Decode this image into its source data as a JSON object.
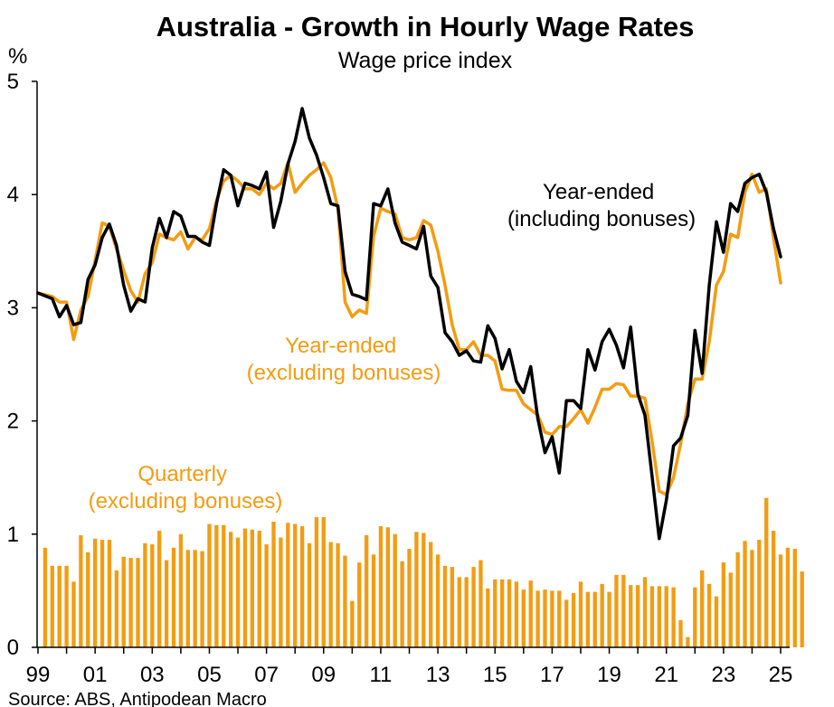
{
  "chart_data": {
    "type": "bar+line",
    "title": "Australia - Growth in Hourly Wage Rates",
    "subtitle": "Wage price index",
    "ylabel": "%",
    "ylim": [
      0,
      5
    ],
    "yticks": [
      "0",
      "1",
      "2",
      "3",
      "4",
      "5"
    ],
    "xlim": [
      1999.0,
      2025.5
    ],
    "xticks": [
      {
        "label": "99",
        "x": 1999.0
      },
      {
        "label": "01",
        "x": 2001.0
      },
      {
        "label": "03",
        "x": 2003.0
      },
      {
        "label": "05",
        "x": 2005.0
      },
      {
        "label": "07",
        "x": 2007.0
      },
      {
        "label": "09",
        "x": 2009.0
      },
      {
        "label": "11",
        "x": 2011.0
      },
      {
        "label": "13",
        "x": 2013.0
      },
      {
        "label": "15",
        "x": 2015.0
      },
      {
        "label": "17",
        "x": 2017.0
      },
      {
        "label": "19",
        "x": 2019.0
      },
      {
        "label": "21",
        "x": 2021.0
      },
      {
        "label": "23",
        "x": 2023.0
      },
      {
        "label": "25",
        "x": 2025.0
      }
    ],
    "grid": false,
    "series": [
      {
        "name": "Quarterly (excluding bonuses)",
        "kind": "bar",
        "color": "#F39C12",
        "x_start": 1999.25,
        "x_step": 0.25,
        "values": [
          0.88,
          0.72,
          0.72,
          0.72,
          0.58,
          0.99,
          0.84,
          0.96,
          0.95,
          0.95,
          0.68,
          0.8,
          0.79,
          0.79,
          0.92,
          0.91,
          1.03,
          0.77,
          0.88,
          1.0,
          0.86,
          0.86,
          0.85,
          1.09,
          1.08,
          1.08,
          1.02,
          0.97,
          1.05,
          1.04,
          1.03,
          0.91,
          1.11,
          0.97,
          1.1,
          1.09,
          1.07,
          0.92,
          1.15,
          1.15,
          0.93,
          0.92,
          0.81,
          0.41,
          0.75,
          0.99,
          0.82,
          1.07,
          1.06,
          1.0,
          0.76,
          0.87,
          1.02,
          1.01,
          0.93,
          0.82,
          0.72,
          0.71,
          0.62,
          0.62,
          0.71,
          0.77,
          0.52,
          0.6,
          0.6,
          0.6,
          0.58,
          0.51,
          0.59,
          0.5,
          0.51,
          0.5,
          0.5,
          0.42,
          0.48,
          0.58,
          0.49,
          0.49,
          0.56,
          0.49,
          0.64,
          0.64,
          0.55,
          0.55,
          0.62,
          0.54,
          0.54,
          0.54,
          0.53,
          0.24,
          0.09,
          0.53,
          0.68,
          0.56,
          0.45,
          0.75,
          0.66,
          0.84,
          0.94,
          0.86,
          0.95,
          1.32,
          1.03,
          0.82,
          0.88,
          0.87,
          0.67
        ]
      },
      {
        "name": "Year-ended (including bonuses)",
        "label": "Year-ended\n(including bonuses)",
        "kind": "line",
        "color": "#000000",
        "points": [
          [
            1999.0,
            3.13
          ],
          [
            1999.5,
            3.08
          ],
          [
            1999.75,
            2.92
          ],
          [
            2000.0,
            3.02
          ],
          [
            2000.25,
            2.85
          ],
          [
            2000.5,
            2.87
          ],
          [
            2000.75,
            3.25
          ],
          [
            2001.0,
            3.38
          ],
          [
            2001.25,
            3.62
          ],
          [
            2001.5,
            3.74
          ],
          [
            2001.75,
            3.55
          ],
          [
            2002.0,
            3.2
          ],
          [
            2002.25,
            2.97
          ],
          [
            2002.5,
            3.08
          ],
          [
            2002.75,
            3.05
          ],
          [
            2003.0,
            3.53
          ],
          [
            2003.25,
            3.79
          ],
          [
            2003.5,
            3.62
          ],
          [
            2003.75,
            3.85
          ],
          [
            2004.0,
            3.81
          ],
          [
            2004.25,
            3.63
          ],
          [
            2004.5,
            3.63
          ],
          [
            2004.75,
            3.58
          ],
          [
            2005.0,
            3.55
          ],
          [
            2005.25,
            3.92
          ],
          [
            2005.5,
            4.22
          ],
          [
            2005.75,
            4.17
          ],
          [
            2006.0,
            3.9
          ],
          [
            2006.25,
            4.1
          ],
          [
            2006.5,
            4.08
          ],
          [
            2006.75,
            4.05
          ],
          [
            2007.0,
            4.2
          ],
          [
            2007.25,
            3.71
          ],
          [
            2007.5,
            3.94
          ],
          [
            2007.75,
            4.27
          ],
          [
            2008.0,
            4.47
          ],
          [
            2008.25,
            4.76
          ],
          [
            2008.5,
            4.5
          ],
          [
            2008.75,
            4.35
          ],
          [
            2009.0,
            4.15
          ],
          [
            2009.25,
            3.92
          ],
          [
            2009.5,
            3.9
          ],
          [
            2009.75,
            3.32
          ],
          [
            2010.0,
            3.12
          ],
          [
            2010.25,
            3.1
          ],
          [
            2010.5,
            3.07
          ],
          [
            2010.75,
            3.92
          ],
          [
            2011.0,
            3.9
          ],
          [
            2011.25,
            4.05
          ],
          [
            2011.5,
            3.75
          ],
          [
            2011.75,
            3.58
          ],
          [
            2012.0,
            3.55
          ],
          [
            2012.25,
            3.52
          ],
          [
            2012.5,
            3.72
          ],
          [
            2012.75,
            3.28
          ],
          [
            2013.0,
            3.18
          ],
          [
            2013.25,
            2.78
          ],
          [
            2013.5,
            2.7
          ],
          [
            2013.75,
            2.58
          ],
          [
            2014.0,
            2.62
          ],
          [
            2014.25,
            2.53
          ],
          [
            2014.5,
            2.52
          ],
          [
            2014.75,
            2.84
          ],
          [
            2015.0,
            2.73
          ],
          [
            2015.25,
            2.46
          ],
          [
            2015.5,
            2.63
          ],
          [
            2015.75,
            2.35
          ],
          [
            2016.0,
            2.25
          ],
          [
            2016.25,
            2.48
          ],
          [
            2016.5,
            2.02
          ],
          [
            2016.75,
            1.72
          ],
          [
            2017.0,
            1.86
          ],
          [
            2017.25,
            1.54
          ],
          [
            2017.5,
            2.18
          ],
          [
            2017.75,
            2.18
          ],
          [
            2018.0,
            2.11
          ],
          [
            2018.25,
            2.63
          ],
          [
            2018.5,
            2.45
          ],
          [
            2018.75,
            2.7
          ],
          [
            2019.0,
            2.81
          ],
          [
            2019.25,
            2.67
          ],
          [
            2019.5,
            2.47
          ],
          [
            2019.75,
            2.83
          ],
          [
            2020.0,
            2.24
          ],
          [
            2020.25,
            2.05
          ],
          [
            2020.5,
            1.51
          ],
          [
            2020.75,
            0.96
          ],
          [
            2021.0,
            1.3
          ],
          [
            2021.25,
            1.78
          ],
          [
            2021.5,
            1.85
          ],
          [
            2021.75,
            2.05
          ],
          [
            2022.0,
            2.8
          ],
          [
            2022.25,
            2.42
          ],
          [
            2022.5,
            3.2
          ],
          [
            2022.75,
            3.76
          ],
          [
            2023.0,
            3.49
          ],
          [
            2023.25,
            3.92
          ],
          [
            2023.5,
            3.85
          ],
          [
            2023.75,
            4.1
          ],
          [
            2024.0,
            4.15
          ],
          [
            2024.25,
            4.18
          ],
          [
            2024.5,
            4.02
          ],
          [
            2024.75,
            3.7
          ],
          [
            2025.0,
            3.45
          ]
        ]
      },
      {
        "name": "Year-ended (excluding bonuses)",
        "label": "Year-ended\n(excluding bonuses)",
        "kind": "line",
        "color": "#F39C12",
        "points": [
          [
            1999.0,
            3.13
          ],
          [
            1999.5,
            3.1
          ],
          [
            1999.75,
            3.05
          ],
          [
            2000.0,
            3.05
          ],
          [
            2000.25,
            2.72
          ],
          [
            2000.5,
            2.98
          ],
          [
            2000.75,
            3.1
          ],
          [
            2001.0,
            3.42
          ],
          [
            2001.25,
            3.75
          ],
          [
            2001.5,
            3.72
          ],
          [
            2001.75,
            3.52
          ],
          [
            2002.0,
            3.33
          ],
          [
            2002.25,
            3.15
          ],
          [
            2002.5,
            3.05
          ],
          [
            2002.75,
            3.3
          ],
          [
            2003.0,
            3.4
          ],
          [
            2003.25,
            3.65
          ],
          [
            2003.5,
            3.62
          ],
          [
            2003.75,
            3.6
          ],
          [
            2004.0,
            3.67
          ],
          [
            2004.25,
            3.52
          ],
          [
            2004.5,
            3.62
          ],
          [
            2004.75,
            3.6
          ],
          [
            2005.0,
            3.7
          ],
          [
            2005.25,
            3.95
          ],
          [
            2005.5,
            4.12
          ],
          [
            2005.75,
            4.17
          ],
          [
            2006.0,
            4.12
          ],
          [
            2006.25,
            4.05
          ],
          [
            2006.5,
            4.05
          ],
          [
            2006.75,
            4.0
          ],
          [
            2007.0,
            4.1
          ],
          [
            2007.25,
            4.05
          ],
          [
            2007.5,
            4.1
          ],
          [
            2007.75,
            4.28
          ],
          [
            2008.0,
            4.02
          ],
          [
            2008.25,
            4.1
          ],
          [
            2008.5,
            4.17
          ],
          [
            2008.75,
            4.22
          ],
          [
            2009.0,
            4.28
          ],
          [
            2009.25,
            4.15
          ],
          [
            2009.5,
            3.88
          ],
          [
            2009.75,
            3.05
          ],
          [
            2010.0,
            2.92
          ],
          [
            2010.25,
            2.98
          ],
          [
            2010.5,
            2.95
          ],
          [
            2010.75,
            3.63
          ],
          [
            2011.0,
            3.88
          ],
          [
            2011.25,
            3.85
          ],
          [
            2011.5,
            3.83
          ],
          [
            2011.75,
            3.62
          ],
          [
            2012.0,
            3.6
          ],
          [
            2012.25,
            3.62
          ],
          [
            2012.5,
            3.77
          ],
          [
            2012.75,
            3.73
          ],
          [
            2013.0,
            3.5
          ],
          [
            2013.25,
            3.2
          ],
          [
            2013.5,
            2.85
          ],
          [
            2013.75,
            2.63
          ],
          [
            2014.0,
            2.63
          ],
          [
            2014.25,
            2.7
          ],
          [
            2014.5,
            2.58
          ],
          [
            2014.75,
            2.58
          ],
          [
            2015.0,
            2.53
          ],
          [
            2015.25,
            2.28
          ],
          [
            2015.5,
            2.27
          ],
          [
            2015.75,
            2.27
          ],
          [
            2016.0,
            2.15
          ],
          [
            2016.25,
            2.1
          ],
          [
            2016.5,
            2.05
          ],
          [
            2016.75,
            1.9
          ],
          [
            2017.0,
            1.88
          ],
          [
            2017.25,
            1.95
          ],
          [
            2017.5,
            1.95
          ],
          [
            2017.75,
            2.02
          ],
          [
            2018.0,
            2.1
          ],
          [
            2018.25,
            1.98
          ],
          [
            2018.5,
            2.12
          ],
          [
            2018.75,
            2.28
          ],
          [
            2019.0,
            2.28
          ],
          [
            2019.25,
            2.33
          ],
          [
            2019.5,
            2.32
          ],
          [
            2019.75,
            2.22
          ],
          [
            2020.0,
            2.22
          ],
          [
            2020.25,
            2.2
          ],
          [
            2020.5,
            1.82
          ],
          [
            2020.75,
            1.38
          ],
          [
            2021.0,
            1.35
          ],
          [
            2021.25,
            1.5
          ],
          [
            2021.5,
            1.8
          ],
          [
            2021.75,
            2.15
          ],
          [
            2022.0,
            2.37
          ],
          [
            2022.25,
            2.37
          ],
          [
            2022.5,
            2.7
          ],
          [
            2022.75,
            3.2
          ],
          [
            2023.0,
            3.32
          ],
          [
            2023.25,
            3.65
          ],
          [
            2023.5,
            3.62
          ],
          [
            2023.75,
            4.02
          ],
          [
            2024.0,
            4.18
          ],
          [
            2024.25,
            4.02
          ],
          [
            2024.5,
            4.05
          ],
          [
            2024.75,
            3.62
          ],
          [
            2025.0,
            3.22
          ]
        ]
      }
    ],
    "annotations": [
      {
        "label": "Quarterly\n(excluding bonuses)",
        "color": "#F39C12"
      }
    ],
    "source": "Source: ABS, Antipodean Macro"
  }
}
